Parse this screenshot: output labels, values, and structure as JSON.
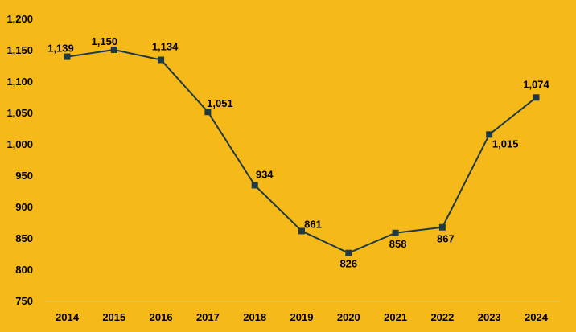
{
  "chart_data": {
    "type": "line",
    "x": [
      "2014",
      "2015",
      "2016",
      "2017",
      "2018",
      "2019",
      "2020",
      "2021",
      "2022",
      "2023",
      "2024"
    ],
    "series": [
      {
        "values": [
          1139,
          1150,
          1134,
          1051,
          934,
          861,
          826,
          858,
          867,
          1015,
          1074
        ],
        "labels": [
          "1,139",
          "1,150",
          "1,134",
          "1,051",
          "934",
          "861",
          "826",
          "858",
          "867",
          "1,015",
          "1,074"
        ]
      }
    ],
    "y_ticks": [
      750,
      800,
      850,
      900,
      950,
      1000,
      1050,
      1100,
      1150,
      1200
    ],
    "y_tick_labels": [
      "750",
      "800",
      "850",
      "900",
      "950",
      "1,000",
      "1,050",
      "1,100",
      "1,150",
      "1,200"
    ],
    "ylim": [
      750,
      1200
    ],
    "grid": false,
    "legend": "none",
    "title": "",
    "xlabel": "",
    "ylabel": ""
  },
  "colors": {
    "background": "#F5B919",
    "line": "#1F3A45",
    "marker": "#1F3A45",
    "text": "#000000",
    "baseline": "#E3C36A"
  }
}
